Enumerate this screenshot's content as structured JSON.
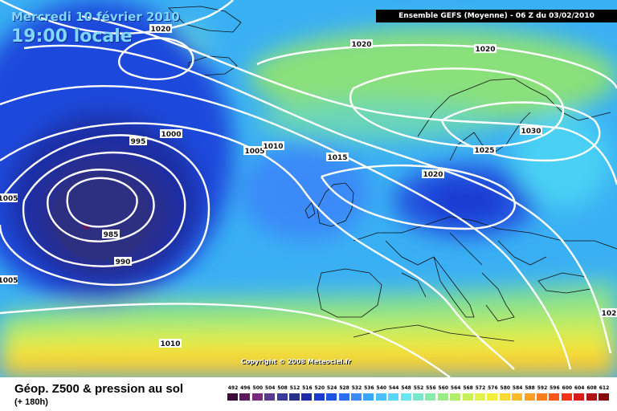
{
  "header": {
    "date_line": "Mercredi 10 février 2010",
    "time_line": "19:00 locale",
    "run_info": "Ensemble GEFS (Moyenne)  - 06 Z du 03/02/2010"
  },
  "copyright": "Copyright © 2008 Meteociel.fr",
  "footer": {
    "title": "Géop. Z500 & pression au sol",
    "step": "(+ 180h)"
  },
  "isobar_labels": [
    "1020",
    "1020",
    "1020",
    "995",
    "1000",
    "1005",
    "1010",
    "1015",
    "1020",
    "1025",
    "1030",
    "1005",
    "985",
    "990",
    "1005",
    "1010",
    "102"
  ],
  "legend": {
    "values": [
      "492",
      "496",
      "500",
      "504",
      "508",
      "512",
      "516",
      "520",
      "524",
      "528",
      "532",
      "536",
      "540",
      "544",
      "548",
      "552",
      "556",
      "560",
      "564",
      "568",
      "572",
      "576",
      "580",
      "584",
      "588",
      "592",
      "596",
      "600",
      "604",
      "608",
      "612"
    ],
    "colors": [
      "#3b0a3b",
      "#5a1a5e",
      "#7a2a7e",
      "#5a3a8e",
      "#3a3a9a",
      "#26308a",
      "#1c2aa8",
      "#1a3ad0",
      "#1c52e6",
      "#2a6ef4",
      "#3a8af8",
      "#3aa6fa",
      "#4ac0fc",
      "#5ad6fa",
      "#6ae6f0",
      "#7ae8cc",
      "#8aeaa8",
      "#9aec86",
      "#b2ee6a",
      "#caf058",
      "#e2f24a",
      "#f4ee3a",
      "#fcd830",
      "#fcbc2a",
      "#fca024",
      "#fc7c20",
      "#fc561c",
      "#f43218",
      "#d81c16",
      "#b01014",
      "#880810"
    ]
  }
}
